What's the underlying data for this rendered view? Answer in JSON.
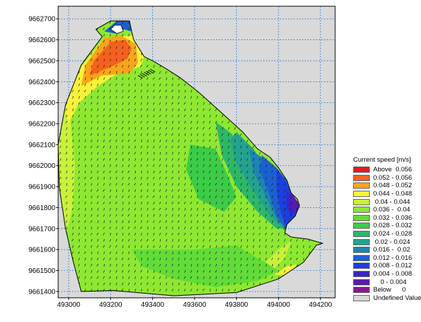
{
  "chart_data": {
    "type": "heatmap",
    "title": "",
    "xlabel": "",
    "ylabel": "",
    "xlim": [
      492950,
      494270
    ],
    "ylim": [
      9661370,
      9662760
    ],
    "x_ticks": [
      493000,
      493200,
      493400,
      493600,
      493800,
      494000,
      494200
    ],
    "y_ticks": [
      9661400,
      9661500,
      9661600,
      9661700,
      9661800,
      9661900,
      9662000,
      9662100,
      9662200,
      9662300,
      9662400,
      9662500,
      9662600,
      9662700
    ],
    "grid": true,
    "plot_background": "#d9d9d9",
    "legend": {
      "title": "Current speed [m/s]",
      "placement": "right",
      "items": [
        {
          "label": "Above  0.056",
          "color": "#e8191a"
        },
        {
          "label": "0.052 - 0.056",
          "color": "#f4611e"
        },
        {
          "label": "0.048 - 0.052",
          "color": "#f9a51a"
        },
        {
          "label": "0.044 - 0.048",
          "color": "#f7f23a"
        },
        {
          "label": " 0.04 - 0.044",
          "color": "#c8f23a"
        },
        {
          "label": "0.036 -  0.04",
          "color": "#8ee832"
        },
        {
          "label": "0.032 - 0.036",
          "color": "#62dc38"
        },
        {
          "label": "0.028 - 0.032",
          "color": "#3ccc48"
        },
        {
          "label": "0.024 - 0.028",
          "color": "#2cb868"
        },
        {
          "label": " 0.02 - 0.024",
          "color": "#24a290"
        },
        {
          "label": "0.016 -  0.02",
          "color": "#1e84b4"
        },
        {
          "label": "0.012 - 0.016",
          "color": "#1c60d0"
        },
        {
          "label": "0.008 - 0.012",
          "color": "#1a40e0"
        },
        {
          "label": "0.004 - 0.008",
          "color": "#3a24c8"
        },
        {
          "label": "    0 - 0.004",
          "color": "#5c1aa8"
        },
        {
          "label": "Below      0",
          "color": "#8a1690"
        },
        {
          "label": "Undefined Value",
          "color": "#d9d9d9"
        }
      ]
    },
    "domain_boundary": [
      [
        493060,
        9661400
      ],
      [
        493210,
        9661405
      ],
      [
        493500,
        9661380
      ],
      [
        493800,
        9661395
      ],
      [
        494000,
        9661460
      ],
      [
        494120,
        9661540
      ],
      [
        494180,
        9661620
      ],
      [
        494210,
        9661630
      ],
      [
        494140,
        9661650
      ],
      [
        494060,
        9661660
      ],
      [
        494030,
        9661680
      ],
      [
        494040,
        9661720
      ],
      [
        494080,
        9661760
      ],
      [
        494100,
        9661810
      ],
      [
        494090,
        9661840
      ],
      [
        494060,
        9661870
      ],
      [
        494040,
        9661930
      ],
      [
        494000,
        9661990
      ],
      [
        493960,
        9662040
      ],
      [
        493900,
        9662080
      ],
      [
        493830,
        9662160
      ],
      [
        493720,
        9662260
      ],
      [
        493620,
        9662350
      ],
      [
        493530,
        9662420
      ],
      [
        493460,
        9662465
      ],
      [
        493400,
        9662500
      ],
      [
        493360,
        9662520
      ],
      [
        493310,
        9662600
      ],
      [
        493300,
        9662640
      ],
      [
        493290,
        9662690
      ],
      [
        493200,
        9662690
      ],
      [
        493130,
        9662650
      ],
      [
        493160,
        9662615
      ],
      [
        493060,
        9662480
      ],
      [
        492985,
        9662290
      ],
      [
        492950,
        9662100
      ],
      [
        492955,
        9661900
      ],
      [
        492985,
        9661700
      ],
      [
        493020,
        9661550
      ]
    ],
    "speed_zones": [
      {
        "range": "0.04 - 0.044",
        "color": "#c8f23a",
        "polygon": [
          [
            492955,
            9661550
          ],
          [
            493020,
            9661800
          ],
          [
            493030,
            9662000
          ],
          [
            493000,
            9662300
          ],
          [
            492950,
            9662300
          ]
        ]
      },
      {
        "range": "0.044 - 0.048",
        "color": "#f7f23a",
        "polygon": [
          [
            493000,
            9662200
          ],
          [
            493050,
            9662300
          ],
          [
            493140,
            9662380
          ],
          [
            493250,
            9662450
          ],
          [
            493340,
            9662470
          ],
          [
            493360,
            9662520
          ],
          [
            493310,
            9662620
          ],
          [
            493170,
            9662610
          ],
          [
            493060,
            9662470
          ],
          [
            492980,
            9662280
          ]
        ]
      },
      {
        "range": "0.048 - 0.052",
        "color": "#f9a51a",
        "polygon": [
          [
            493060,
            9662380
          ],
          [
            493160,
            9662430
          ],
          [
            493290,
            9662440
          ],
          [
            493330,
            9662490
          ],
          [
            493320,
            9662580
          ],
          [
            493250,
            9662620
          ],
          [
            493170,
            9662610
          ],
          [
            493080,
            9662480
          ]
        ]
      },
      {
        "range": "0.052 - 0.056",
        "color": "#f4611e",
        "polygon": [
          [
            493100,
            9662430
          ],
          [
            493200,
            9662470
          ],
          [
            493280,
            9662510
          ],
          [
            493300,
            9662560
          ],
          [
            493270,
            9662600
          ],
          [
            493200,
            9662590
          ],
          [
            493120,
            9662500
          ]
        ]
      },
      {
        "range": "0.028 - 0.032",
        "color": "#3ccc48",
        "polygon": [
          [
            493580,
            9662100
          ],
          [
            493700,
            9662080
          ],
          [
            493760,
            9661950
          ],
          [
            493800,
            9661850
          ],
          [
            493740,
            9661780
          ],
          [
            493620,
            9661840
          ],
          [
            493560,
            9661980
          ]
        ]
      },
      {
        "range": "0.024 - 0.028",
        "color": "#2cb868",
        "polygon": [
          [
            493700,
            9662210
          ],
          [
            493780,
            9662150
          ],
          [
            493850,
            9662010
          ],
          [
            493930,
            9661900
          ],
          [
            494000,
            9661800
          ],
          [
            494040,
            9661700
          ],
          [
            493990,
            9661700
          ],
          [
            493900,
            9661780
          ],
          [
            493800,
            9661900
          ],
          [
            493730,
            9662050
          ]
        ]
      },
      {
        "range": "0.02 - 0.024",
        "color": "#24a290",
        "polygon": [
          [
            493800,
            9662160
          ],
          [
            493880,
            9662080
          ],
          [
            493940,
            9661990
          ],
          [
            494010,
            9661880
          ],
          [
            494050,
            9661730
          ],
          [
            494030,
            9661690
          ],
          [
            493960,
            9661760
          ],
          [
            493880,
            9661880
          ],
          [
            493800,
            9662010
          ],
          [
            493770,
            9662120
          ]
        ]
      },
      {
        "range": "0.016 - 0.02",
        "color": "#1e84b4",
        "polygon": [
          [
            493860,
            9662080
          ],
          [
            493950,
            9662020
          ],
          [
            494010,
            9661930
          ],
          [
            494050,
            9661800
          ],
          [
            494060,
            9661700
          ],
          [
            494000,
            9661730
          ],
          [
            493940,
            9661850
          ],
          [
            493880,
            9661970
          ]
        ]
      },
      {
        "range": "0.012 - 0.016",
        "color": "#1c60d0",
        "polygon": [
          [
            493920,
            9662050
          ],
          [
            493990,
            9661990
          ],
          [
            494040,
            9661930
          ],
          [
            494080,
            9661840
          ],
          [
            494100,
            9661800
          ],
          [
            494070,
            9661740
          ],
          [
            494040,
            9661690
          ],
          [
            493990,
            9661760
          ],
          [
            493950,
            9661880
          ],
          [
            493910,
            9661980
          ]
        ]
      },
      {
        "range": "0.008 - 0.012",
        "color": "#1a40e0",
        "polygon": [
          [
            493990,
            9661990
          ],
          [
            494030,
            9661930
          ],
          [
            494070,
            9661860
          ],
          [
            494100,
            9661810
          ],
          [
            494080,
            9661760
          ],
          [
            494040,
            9661700
          ],
          [
            494010,
            9661780
          ],
          [
            493990,
            9661880
          ]
        ]
      },
      {
        "range": "0.004 - 0.008",
        "color": "#3a24c8",
        "polygon": [
          [
            494040,
            9661880
          ],
          [
            494080,
            9661840
          ],
          [
            494100,
            9661800
          ],
          [
            494060,
            9661760
          ],
          [
            494040,
            9661800
          ]
        ]
      },
      {
        "range": "0 - 0.004",
        "color": "#5c1aa8",
        "polygon": [
          [
            494060,
            9661860
          ],
          [
            494090,
            9661830
          ],
          [
            494095,
            9661800
          ],
          [
            494070,
            9661790
          ],
          [
            494060,
            9661820
          ]
        ]
      },
      {
        "range": "0.032 - 0.036",
        "color": "#62dc38",
        "polygon": [
          [
            493300,
            9661600
          ],
          [
            493600,
            9661600
          ],
          [
            493800,
            9661620
          ],
          [
            493900,
            9661560
          ],
          [
            494000,
            9661500
          ],
          [
            493900,
            9661450
          ],
          [
            493700,
            9661420
          ],
          [
            493500,
            9661460
          ],
          [
            493350,
            9661520
          ]
        ]
      },
      {
        "range": "0.04 - 0.044",
        "color": "#c8f23a",
        "polygon": [
          [
            493940,
            9661540
          ],
          [
            494000,
            9661600
          ],
          [
            494060,
            9661640
          ],
          [
            494030,
            9661560
          ],
          [
            493980,
            9661510
          ]
        ]
      },
      {
        "range": "0.044 - 0.048",
        "color": "#f7f23a",
        "polygon": [
          [
            493980,
            9661480
          ],
          [
            494040,
            9661520
          ],
          [
            494090,
            9661530
          ],
          [
            494060,
            9661480
          ]
        ]
      },
      {
        "range": "0.012 - 0.016",
        "color": "#1c60d0",
        "polygon": [
          [
            493170,
            9662640
          ],
          [
            493230,
            9662690
          ],
          [
            493290,
            9662690
          ],
          [
            493300,
            9662640
          ],
          [
            493260,
            9662650
          ],
          [
            493220,
            9662630
          ]
        ]
      }
    ],
    "land_patch": [
      [
        493200,
        9662650
      ],
      [
        493230,
        9662630
      ],
      [
        493260,
        9662640
      ],
      [
        493250,
        9662670
      ],
      [
        493220,
        9662670
      ]
    ]
  }
}
